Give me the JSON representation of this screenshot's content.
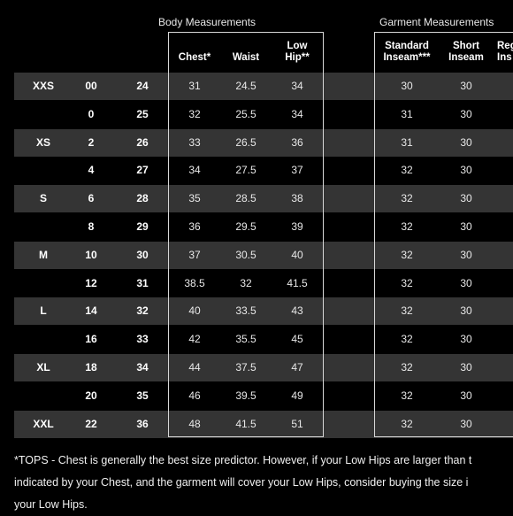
{
  "groups": {
    "body": "Body Measurements",
    "garment": "Garment Measurements"
  },
  "headers": {
    "chest": "Chest*",
    "waist": "Waist",
    "low_hip": "Low\nHip**",
    "standard_inseam": "Standard\nInseam***",
    "short_inseam": "Short\nInseam",
    "regular_inseam": "Reg\nIns"
  },
  "rows": [
    {
      "size": "XXS",
      "num": "00",
      "waist_in": "24",
      "chest": "31",
      "waist": "24.5",
      "hip": "34",
      "std": "30",
      "short": "30"
    },
    {
      "size": "",
      "num": "0",
      "waist_in": "25",
      "chest": "32",
      "waist": "25.5",
      "hip": "34",
      "std": "31",
      "short": "30"
    },
    {
      "size": "XS",
      "num": "2",
      "waist_in": "26",
      "chest": "33",
      "waist": "26.5",
      "hip": "36",
      "std": "31",
      "short": "30"
    },
    {
      "size": "",
      "num": "4",
      "waist_in": "27",
      "chest": "34",
      "waist": "27.5",
      "hip": "37",
      "std": "32",
      "short": "30"
    },
    {
      "size": "S",
      "num": "6",
      "waist_in": "28",
      "chest": "35",
      "waist": "28.5",
      "hip": "38",
      "std": "32",
      "short": "30"
    },
    {
      "size": "",
      "num": "8",
      "waist_in": "29",
      "chest": "36",
      "waist": "29.5",
      "hip": "39",
      "std": "32",
      "short": "30"
    },
    {
      "size": "M",
      "num": "10",
      "waist_in": "30",
      "chest": "37",
      "waist": "30.5",
      "hip": "40",
      "std": "32",
      "short": "30"
    },
    {
      "size": "",
      "num": "12",
      "waist_in": "31",
      "chest": "38.5",
      "waist": "32",
      "hip": "41.5",
      "std": "32",
      "short": "30"
    },
    {
      "size": "L",
      "num": "14",
      "waist_in": "32",
      "chest": "40",
      "waist": "33.5",
      "hip": "43",
      "std": "32",
      "short": "30"
    },
    {
      "size": "",
      "num": "16",
      "waist_in": "33",
      "chest": "42",
      "waist": "35.5",
      "hip": "45",
      "std": "32",
      "short": "30"
    },
    {
      "size": "XL",
      "num": "18",
      "waist_in": "34",
      "chest": "44",
      "waist": "37.5",
      "hip": "47",
      "std": "32",
      "short": "30"
    },
    {
      "size": "",
      "num": "20",
      "waist_in": "35",
      "chest": "46",
      "waist": "39.5",
      "hip": "49",
      "std": "32",
      "short": "30"
    },
    {
      "size": "XXL",
      "num": "22",
      "waist_in": "36",
      "chest": "48",
      "waist": "41.5",
      "hip": "51",
      "std": "32",
      "short": "30"
    }
  ],
  "footnote": {
    "line1": "*TOPS - Chest is generally the best size predictor. However, if your Low Hips are larger than t",
    "line2": "indicated by your Chest, and the garment will cover your Low Hips, consider buying the size i",
    "line3": "your Low Hips."
  }
}
